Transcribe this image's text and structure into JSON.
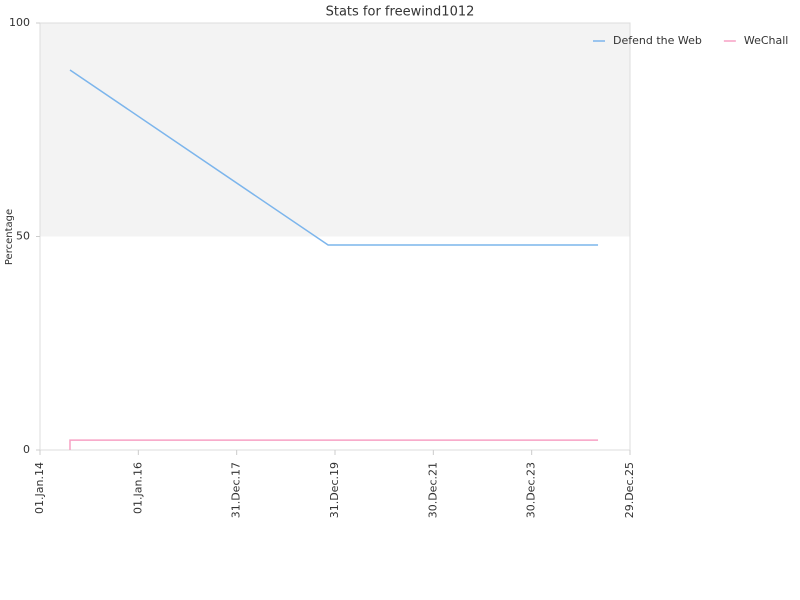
{
  "chart_data": {
    "type": "line",
    "title": "Stats for freewind1012",
    "y_label": "Percentage",
    "xlim": [
      2014,
      2026
    ],
    "xticks": [
      {
        "value": 2014,
        "label": "01.Jan.14"
      },
      {
        "value": 2016,
        "label": "01.Jan.16"
      },
      {
        "value": 2018,
        "label": "31.Dec.17"
      },
      {
        "value": 2020,
        "label": "31.Dec.19"
      },
      {
        "value": 2022,
        "label": "30.Dec.21"
      },
      {
        "value": 2024,
        "label": "30.Dec.23"
      },
      {
        "value": 2026,
        "label": "29.Dec.25"
      }
    ],
    "ylim": [
      0,
      100
    ],
    "yticks": [
      0,
      50,
      100
    ],
    "plot_band": {
      "from": 50,
      "to": 100,
      "color": "#f3f3f3"
    },
    "legend": "top-right",
    "series": [
      {
        "name": "Defend the Web",
        "color": "#7cb5ec",
        "x": [
          2014.61,
          2019.86,
          2025.35
        ],
        "values": [
          89,
          48,
          48
        ]
      },
      {
        "name": "WeChall",
        "color": "#f7a1c4",
        "x": [
          2014.61,
          2014.61,
          2025.35
        ],
        "values": [
          0,
          2.3,
          2.3
        ]
      }
    ]
  }
}
